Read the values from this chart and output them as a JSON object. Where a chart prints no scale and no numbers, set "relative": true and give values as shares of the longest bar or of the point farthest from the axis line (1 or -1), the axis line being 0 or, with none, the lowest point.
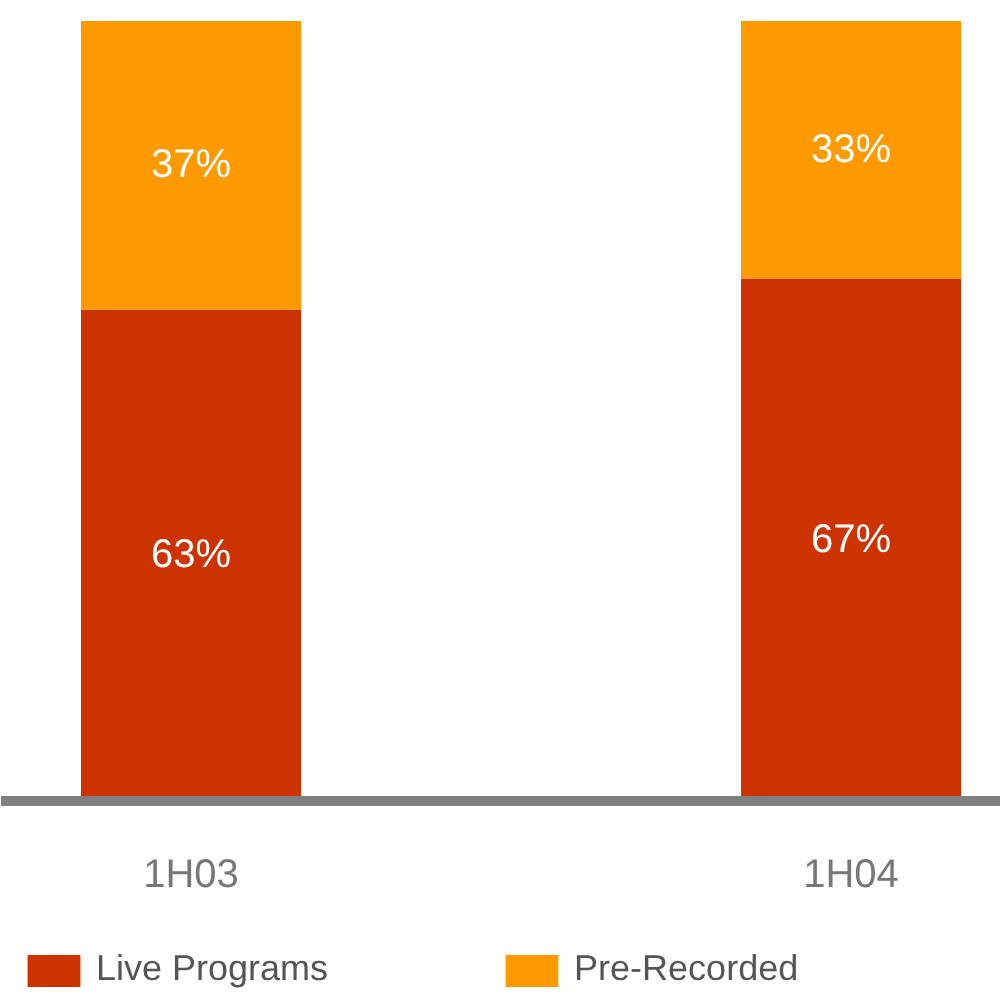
{
  "chart_data": {
    "type": "bar",
    "stacked": true,
    "categories": [
      "1H03",
      "1H04"
    ],
    "series": [
      {
        "name": "Live Programs",
        "color": "#cc3300",
        "values": [
          0.63,
          0.67
        ]
      },
      {
        "name": "Pre-Recorded",
        "color": "#ff9900",
        "values": [
          0.37,
          0.33
        ]
      }
    ],
    "relative": true,
    "value_labels": [
      [
        "63%",
        "67%"
      ],
      [
        "37%",
        "33%"
      ]
    ],
    "legend": "bottom"
  }
}
